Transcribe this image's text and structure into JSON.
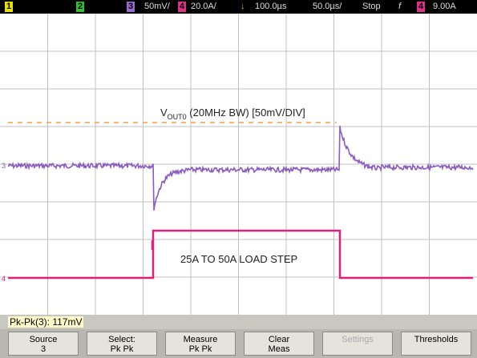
{
  "status_bar": {
    "channel_1": "1",
    "channel_2": "2",
    "channel_3": "3",
    "ch3_scale": "50mV/",
    "channel_4": "4",
    "ch4_scale": "20.0A/",
    "delay": "100.0µs",
    "timebase": "50.0µs/",
    "run_state": "Stop",
    "trigger_slope": "f",
    "trigger_channel": "4",
    "trigger_level": "9.00A"
  },
  "annotations": {
    "vout_prefix": "V",
    "vout_subscript": "OUT0",
    "vout_rest": " (20MHz BW) [50mV/DIV]",
    "load_step": "25A TO 50A LOAD STEP"
  },
  "markers": {
    "ch3": "3",
    "ch4": "4"
  },
  "measurement": "Pk-Pk(3): 117mV",
  "softkeys": [
    {
      "top": "Source",
      "bottom": "3"
    },
    {
      "top": "Select:",
      "bottom": "Pk Pk"
    },
    {
      "top": "Measure",
      "bottom": "Pk Pk"
    },
    {
      "top": "Clear",
      "bottom": "Meas"
    },
    {
      "top": "Settings"
    },
    {
      "top": "Thresholds"
    }
  ]
}
